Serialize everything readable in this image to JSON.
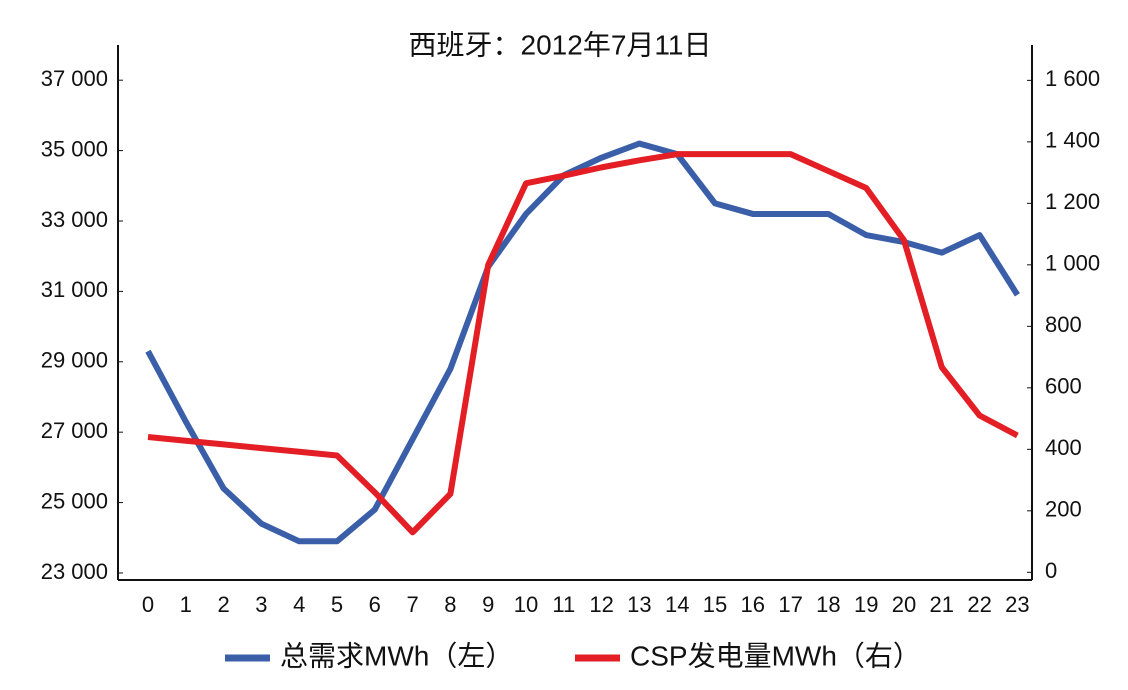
{
  "chart_data": {
    "type": "line",
    "title": "西班牙：2012年7月11日",
    "categories": [
      "0",
      "1",
      "2",
      "3",
      "4",
      "5",
      "6",
      "7",
      "8",
      "9",
      "10",
      "11",
      "12",
      "13",
      "14",
      "15",
      "16",
      "17",
      "18",
      "19",
      "20",
      "21",
      "22",
      "23"
    ],
    "series": [
      {
        "name": "总需求MWh（左）",
        "color": "#3a5fa8",
        "axis": "y",
        "values": [
          29300,
          27300,
          25400,
          24400,
          23900,
          23900,
          24800,
          26800,
          28800,
          31700,
          33200,
          34300,
          34800,
          35200,
          34900,
          33500,
          33200,
          33200,
          33200,
          32600,
          32400,
          32100,
          32600,
          30900
        ]
      },
      {
        "name": "CSP发电量MWh（右）",
        "color": "#e31e24",
        "axis": "y2",
        "values": [
          440,
          428,
          416,
          404,
          392,
          380,
          260,
          130,
          255,
          1000,
          1265,
          1290,
          1317,
          1340,
          1360,
          1360,
          1360,
          1360,
          1305,
          1250,
          1080,
          667,
          510,
          445
        ]
      }
    ],
    "ylim": [
      22800,
      38000
    ],
    "yticks": [
      {
        "value": 23000,
        "label": "23 000"
      },
      {
        "value": 25000,
        "label": "25 000"
      },
      {
        "value": 27000,
        "label": "27 000"
      },
      {
        "value": 29000,
        "label": "29 000"
      },
      {
        "value": 31000,
        "label": "31 000"
      },
      {
        "value": 33000,
        "label": "33 000"
      },
      {
        "value": 35000,
        "label": "35 000"
      },
      {
        "value": 37000,
        "label": "37 000"
      }
    ],
    "y2lim": [
      -25,
      1715
    ],
    "y2ticks": [
      0,
      200,
      400,
      600,
      800,
      {
        "value": 1000,
        "label": "1 000"
      },
      {
        "value": 1200,
        "label": "1 200"
      },
      {
        "value": 1400,
        "label": "1 400"
      },
      {
        "value": 1600,
        "label": "1 600"
      }
    ],
    "grid": false,
    "legend": "bottom"
  }
}
